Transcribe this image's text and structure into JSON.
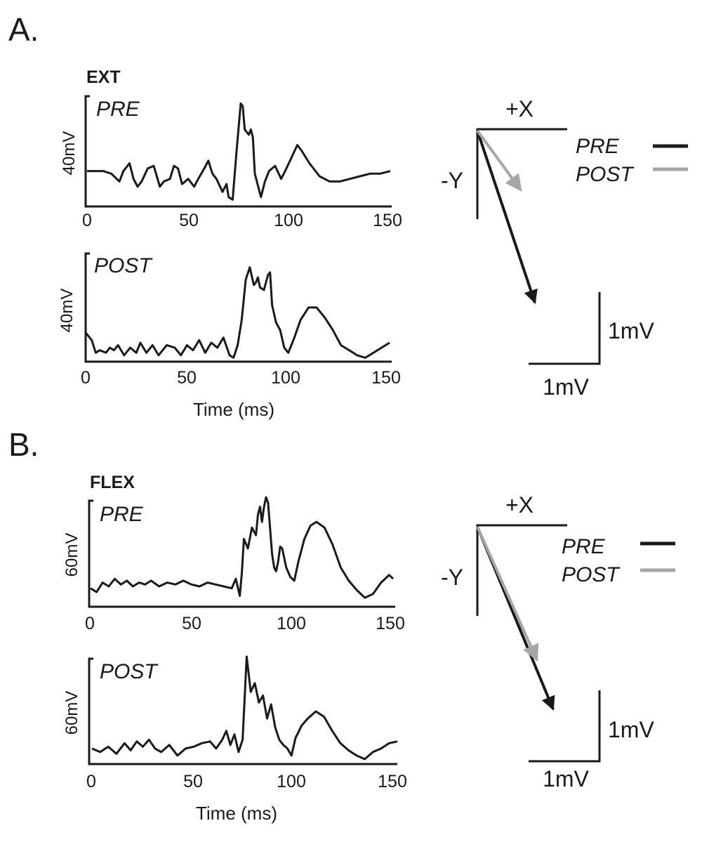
{
  "panels": [
    {
      "letter": "A.",
      "muscle": "EXT",
      "legend": [
        {
          "label": "PRE",
          "color": "#1a1a1a"
        },
        {
          "label": "POST",
          "color": "#a6a6a6"
        }
      ],
      "vector": {
        "x_label": "+X",
        "y_label": "-Y",
        "scale_x_label": "1mV",
        "scale_y_label": "1mV",
        "pre": {
          "dx": 0.82,
          "dy": -2.45
        },
        "post": {
          "dx": 0.62,
          "dy": -0.85
        }
      }
    },
    {
      "letter": "B.",
      "muscle": "FLEX",
      "legend": [
        {
          "label": "PRE",
          "color": "#1a1a1a"
        },
        {
          "label": "POST",
          "color": "#a6a6a6"
        }
      ],
      "vector": {
        "x_label": "+X",
        "y_label": "-Y",
        "scale_x_label": "1mV",
        "scale_y_label": "1mV",
        "pre": {
          "dx": 1.08,
          "dy": -2.6
        },
        "post": {
          "dx": 0.85,
          "dy": -1.9
        }
      }
    }
  ],
  "chart_data": [
    {
      "type": "line",
      "panel": "A",
      "cond": "PRE",
      "ylabel": "40mV",
      "xticks": [
        0,
        50,
        100,
        150
      ],
      "xlabel": "",
      "xlim": [
        0,
        150
      ],
      "ylim": [
        0,
        40
      ],
      "x": [
        0,
        4,
        8,
        12,
        16,
        18,
        21,
        23,
        25,
        27,
        30,
        33,
        36,
        38,
        41,
        43,
        45,
        47,
        50,
        53,
        55,
        58,
        60,
        62,
        64,
        67,
        69,
        70,
        72,
        74,
        76,
        77,
        78,
        80,
        81,
        82,
        83,
        85,
        86,
        88,
        90,
        93,
        96,
        98,
        101,
        104,
        106,
        110,
        115,
        120,
        125,
        130,
        135,
        140,
        145,
        150
      ],
      "values": [
        12,
        12,
        12,
        11,
        8,
        12,
        15,
        9,
        6,
        8,
        13,
        14,
        6,
        8,
        9,
        14,
        13,
        7,
        9,
        6,
        9,
        13,
        16,
        11,
        9,
        4,
        7,
        2,
        1,
        20,
        38,
        37,
        28,
        26,
        28,
        25,
        11,
        5,
        2,
        8,
        12,
        14,
        9,
        12,
        17,
        22,
        20,
        15,
        10,
        8,
        8,
        9,
        10,
        11,
        11,
        12
      ]
    },
    {
      "type": "line",
      "panel": "A",
      "cond": "POST",
      "ylabel": "40mV",
      "xticks": [
        0,
        50,
        100,
        150
      ],
      "xlabel": "Time (ms)",
      "xlim": [
        0,
        150
      ],
      "ylim": [
        0,
        40
      ],
      "x": [
        0,
        3,
        5,
        7,
        10,
        12,
        14,
        16,
        19,
        22,
        25,
        27,
        30,
        33,
        36,
        40,
        44,
        47,
        50,
        53,
        56,
        59,
        62,
        65,
        68,
        71,
        73,
        75,
        77,
        79,
        81,
        83,
        84,
        85,
        86,
        88,
        90,
        91,
        92,
        94,
        96,
        98,
        100,
        103,
        106,
        110,
        114,
        118,
        122,
        126,
        130,
        134,
        138,
        142,
        146,
        150
      ],
      "values": [
        11,
        8,
        3,
        4,
        3,
        5,
        4,
        6,
        2,
        5,
        3,
        7,
        3,
        6,
        2,
        6,
        5,
        2,
        6,
        4,
        8,
        3,
        7,
        5,
        9,
        2,
        1,
        6,
        16,
        32,
        37,
        30,
        31,
        33,
        29,
        28,
        34,
        35,
        22,
        15,
        12,
        5,
        3,
        9,
        16,
        21,
        21,
        17,
        12,
        6,
        4,
        2,
        1,
        3,
        5,
        7
      ]
    },
    {
      "type": "line",
      "panel": "B",
      "cond": "PRE",
      "ylabel": "60mV",
      "xticks": [
        0,
        50,
        100,
        150
      ],
      "xlabel": "",
      "xlim": [
        0,
        150
      ],
      "ylim": [
        0,
        60
      ],
      "x": [
        0,
        3,
        6,
        9,
        12,
        15,
        18,
        21,
        24,
        27,
        30,
        34,
        38,
        42,
        46,
        50,
        54,
        58,
        62,
        66,
        70,
        72,
        74,
        75,
        76,
        78,
        80,
        82,
        83,
        84,
        85,
        86,
        87,
        88,
        90,
        91,
        92,
        93,
        94,
        95,
        97,
        99,
        101,
        103,
        106,
        109,
        112,
        116,
        120,
        124,
        128,
        132,
        136,
        140,
        144,
        148,
        150
      ],
      "values": [
        9,
        7,
        12,
        10,
        14,
        11,
        13,
        10,
        12,
        11,
        13,
        10,
        12,
        11,
        13,
        11,
        10,
        12,
        11,
        10,
        9,
        14,
        5,
        17,
        35,
        30,
        41,
        37,
        48,
        52,
        44,
        52,
        57,
        54,
        27,
        20,
        18,
        23,
        31,
        30,
        20,
        15,
        13,
        23,
        35,
        42,
        44,
        41,
        32,
        20,
        13,
        8,
        4,
        6,
        12,
        16,
        14
      ]
    },
    {
      "type": "line",
      "panel": "B",
      "cond": "POST",
      "ylabel": "60mV",
      "xticks": [
        0,
        50,
        100,
        150
      ],
      "xlabel": "Time (ms)",
      "xlim": [
        0,
        150
      ],
      "ylim": [
        0,
        60
      ],
      "x": [
        0,
        4,
        8,
        12,
        16,
        19,
        22,
        25,
        28,
        31,
        34,
        38,
        42,
        46,
        50,
        54,
        58,
        61,
        64,
        66,
        68,
        70,
        72,
        74,
        76,
        78,
        80,
        82,
        84,
        86,
        88,
        90,
        92,
        94,
        96,
        98,
        100,
        103,
        106,
        110,
        114,
        118,
        122,
        126,
        130,
        134,
        138,
        142,
        146,
        150
      ],
      "values": [
        8,
        6,
        9,
        5,
        11,
        7,
        12,
        9,
        13,
        8,
        6,
        10,
        4,
        8,
        9,
        11,
        12,
        8,
        13,
        18,
        10,
        16,
        6,
        13,
        60,
        40,
        45,
        34,
        38,
        25,
        33,
        20,
        13,
        10,
        8,
        4,
        14,
        21,
        25,
        29,
        26,
        18,
        11,
        7,
        4,
        2,
        6,
        8,
        11,
        12
      ]
    }
  ]
}
